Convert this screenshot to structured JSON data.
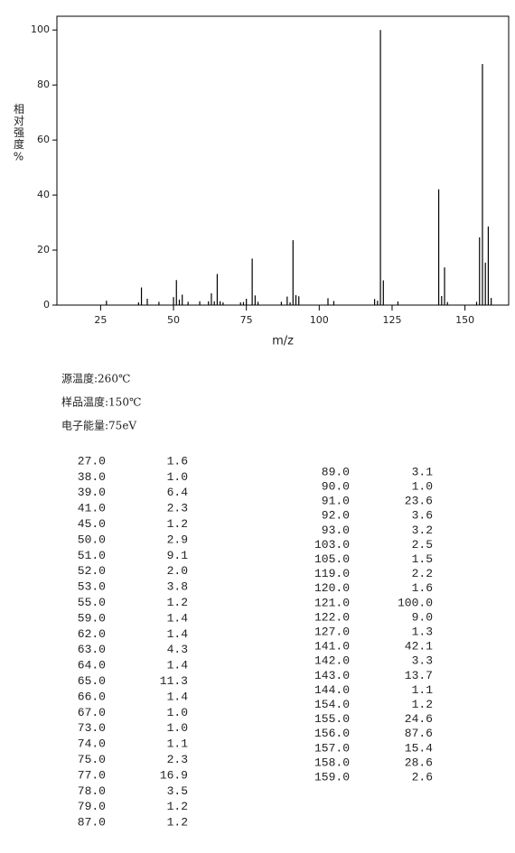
{
  "chart_data": {
    "type": "bar",
    "x_label": "m/z",
    "y_label": "相对强度%",
    "color": "#000000",
    "x": [
      27,
      38,
      39,
      41,
      45,
      50,
      51,
      52,
      53,
      55,
      59,
      62,
      63,
      64,
      65,
      66,
      67,
      73,
      74,
      75,
      77,
      78,
      79,
      87,
      89,
      90,
      91,
      92,
      93,
      103,
      105,
      119,
      120,
      121,
      122,
      127,
      141,
      142,
      143,
      144,
      154,
      155,
      156,
      157,
      158,
      159
    ],
    "values": [
      1.6,
      1.0,
      6.4,
      2.3,
      1.2,
      2.9,
      9.1,
      2.0,
      3.8,
      1.2,
      1.4,
      1.4,
      4.3,
      1.4,
      11.3,
      1.4,
      1.0,
      1.0,
      1.1,
      2.3,
      16.9,
      3.5,
      1.2,
      1.2,
      3.1,
      1.0,
      23.6,
      3.6,
      3.2,
      2.5,
      1.5,
      2.2,
      1.6,
      100.0,
      9.0,
      1.3,
      42.1,
      3.3,
      13.7,
      1.1,
      1.2,
      24.6,
      87.6,
      15.4,
      28.6,
      2.6
    ],
    "xlim": [
      10,
      165
    ],
    "xticks": [
      25,
      50,
      75,
      100,
      125,
      150
    ],
    "ylim": [
      0,
      105
    ],
    "yticks": [
      0,
      20,
      40,
      60,
      80,
      100
    ]
  },
  "info": [
    "源温度:260℃",
    "样品温度:150℃",
    "电子能量:75eV"
  ],
  "table": {
    "left": [
      [
        "27.0",
        "1.6"
      ],
      [
        "38.0",
        "1.0"
      ],
      [
        "39.0",
        "6.4"
      ],
      [
        "41.0",
        "2.3"
      ],
      [
        "45.0",
        "1.2"
      ],
      [
        "50.0",
        "2.9"
      ],
      [
        "51.0",
        "9.1"
      ],
      [
        "52.0",
        "2.0"
      ],
      [
        "53.0",
        "3.8"
      ],
      [
        "55.0",
        "1.2"
      ],
      [
        "59.0",
        "1.4"
      ],
      [
        "62.0",
        "1.4"
      ],
      [
        "63.0",
        "4.3"
      ],
      [
        "64.0",
        "1.4"
      ],
      [
        "65.0",
        "11.3"
      ],
      [
        "66.0",
        "1.4"
      ],
      [
        "67.0",
        "1.0"
      ],
      [
        "73.0",
        "1.0"
      ],
      [
        "74.0",
        "1.1"
      ],
      [
        "75.0",
        "2.3"
      ],
      [
        "77.0",
        "16.9"
      ],
      [
        "78.0",
        "3.5"
      ],
      [
        "79.0",
        "1.2"
      ],
      [
        "87.0",
        "1.2"
      ]
    ],
    "right": [
      [
        "89.0",
        "3.1"
      ],
      [
        "90.0",
        "1.0"
      ],
      [
        "91.0",
        "23.6"
      ],
      [
        "92.0",
        "3.6"
      ],
      [
        "93.0",
        "3.2"
      ],
      [
        "103.0",
        "2.5"
      ],
      [
        "105.0",
        "1.5"
      ],
      [
        "119.0",
        "2.2"
      ],
      [
        "120.0",
        "1.6"
      ],
      [
        "121.0",
        "100.0"
      ],
      [
        "122.0",
        "9.0"
      ],
      [
        "127.0",
        "1.3"
      ],
      [
        "141.0",
        "42.1"
      ],
      [
        "142.0",
        "3.3"
      ],
      [
        "143.0",
        "13.7"
      ],
      [
        "144.0",
        "1.1"
      ],
      [
        "154.0",
        "1.2"
      ],
      [
        "155.0",
        "24.6"
      ],
      [
        "156.0",
        "87.6"
      ],
      [
        "157.0",
        "15.4"
      ],
      [
        "158.0",
        "28.6"
      ],
      [
        "159.0",
        "2.6"
      ]
    ]
  }
}
